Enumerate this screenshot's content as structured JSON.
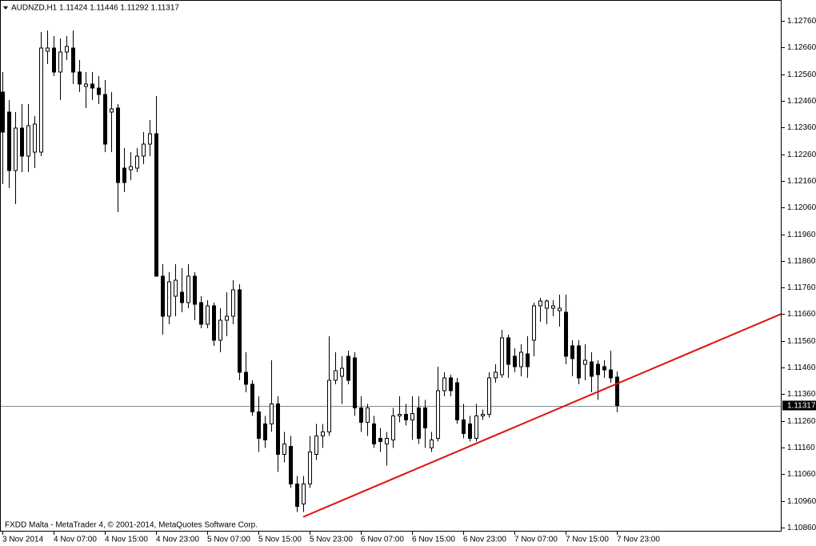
{
  "chart_data": {
    "type": "candlestick",
    "header": "AUDNZD,H1  1.11424 1.11446 1.11292 1.11317",
    "footer": "FXDD Malta - MetaTrader 4, © 2001-2014, MetaQuotes Software Corp.",
    "categories": [
      "3 Nov 2014",
      null,
      null,
      null,
      null,
      null,
      null,
      null,
      "4 Nov 07:00",
      null,
      null,
      null,
      null,
      null,
      null,
      null,
      "4 Nov 15:00",
      null,
      null,
      null,
      null,
      null,
      null,
      null,
      "4 Nov 23:00",
      null,
      null,
      null,
      null,
      null,
      null,
      null,
      "5 Nov 07:00",
      null,
      null,
      null,
      null,
      null,
      null,
      null,
      "5 Nov 15:00",
      null,
      null,
      null,
      null,
      null,
      null,
      null,
      "5 Nov 23:00",
      null,
      null,
      null,
      null,
      null,
      null,
      null,
      "6 Nov 07:00",
      null,
      null,
      null,
      null,
      null,
      null,
      null,
      "6 Nov 15:00",
      null,
      null,
      null,
      null,
      null,
      null,
      null,
      "6 Nov 23:00",
      null,
      null,
      null,
      null,
      null,
      null,
      null,
      "7 Nov 07:00",
      null,
      null,
      null,
      null,
      null,
      null,
      null,
      "7 Nov 15:00",
      null,
      null,
      null,
      null,
      null,
      null,
      null,
      "7 Nov 23:00"
    ],
    "open": [
      1.12493,
      1.12418,
      1.12199,
      1.12358,
      1.12253,
      1.12268,
      1.12268,
      1.12646,
      1.12658,
      1.12568,
      1.12643,
      1.12658,
      1.12568,
      1.12514,
      1.12523,
      1.12508,
      1.12484,
      1.12418,
      1.12433,
      1.12208,
      1.12202,
      1.12208,
      1.12253,
      1.12298,
      1.12337,
      1.11803,
      1.11653,
      1.11728,
      1.11743,
      1.11704,
      1.11803,
      1.11704,
      1.11623,
      1.11692,
      1.11563,
      1.11638,
      1.11653,
      1.11752,
      1.11443,
      1.11398,
      1.11293,
      1.11248,
      1.11248,
      1.11323,
      1.11134,
      1.11164,
      1.11023,
      1.10948,
      1.11023,
      1.11134,
      1.11203,
      1.11218,
      1.11413,
      1.11428,
      1.11503,
      1.11497,
      1.11308,
      1.11254,
      1.11248,
      1.11194,
      1.11173,
      1.11188,
      1.11278,
      1.11284,
      1.11263,
      1.11308,
      1.11308,
      1.11158,
      1.11194,
      1.11374,
      1.11422,
      1.11404,
      1.11263,
      1.11248,
      1.11194,
      1.11278,
      1.11284,
      1.11422,
      1.11434,
      1.11572,
      1.11503,
      1.11464,
      1.11512,
      1.11563,
      1.11692,
      1.11683,
      1.11683,
      1.11674,
      1.11668,
      1.11542,
      1.11542,
      1.11473,
      1.11482,
      1.11473,
      1.11464,
      1.11452,
      1.11424
    ],
    "high": [
      1.12568,
      1.12463,
      1.12418,
      1.12448,
      1.12448,
      1.12403,
      1.12718,
      1.12724,
      1.12703,
      1.12694,
      1.12703,
      1.12724,
      1.12613,
      1.12568,
      1.12568,
      1.12553,
      1.12538,
      1.12493,
      1.12448,
      1.12283,
      1.12268,
      1.12283,
      1.12343,
      1.12388,
      1.12478,
      1.11848,
      1.11818,
      1.11848,
      1.11833,
      1.11848,
      1.11818,
      1.11728,
      1.11713,
      1.11704,
      1.11683,
      1.11743,
      1.11788,
      1.11773,
      1.11518,
      1.11413,
      1.11353,
      1.11278,
      1.11488,
      1.11353,
      1.11218,
      1.11203,
      1.11053,
      1.11053,
      1.11203,
      1.11248,
      1.11248,
      1.11578,
      1.11518,
      1.11503,
      1.11524,
      1.11518,
      1.11353,
      1.11323,
      1.11278,
      1.11233,
      1.11218,
      1.11308,
      1.11353,
      1.11323,
      1.11353,
      1.11353,
      1.11338,
      1.11218,
      1.11464,
      1.11443,
      1.11434,
      1.11422,
      1.11323,
      1.11278,
      1.11323,
      1.11302,
      1.11443,
      1.11473,
      1.11602,
      1.11584,
      1.11533,
      1.11548,
      1.11578,
      1.11704,
      1.11722,
      1.11716,
      1.11713,
      1.11734,
      1.11734,
      1.11563,
      1.11563,
      1.11548,
      1.11518,
      1.11488,
      1.11488,
      1.11524,
      1.11446
    ],
    "low": [
      1.12148,
      1.12133,
      1.12073,
      1.12193,
      1.12193,
      1.12208,
      1.12253,
      1.12598,
      1.12553,
      1.12463,
      1.12613,
      1.12523,
      1.12493,
      1.12433,
      1.12463,
      1.12448,
      1.12268,
      1.12268,
      1.12043,
      1.12118,
      1.12163,
      1.12193,
      1.12223,
      1.12253,
      1.11803,
      1.11584,
      1.11623,
      1.11653,
      1.11668,
      1.11683,
      1.11638,
      1.11608,
      1.11608,
      1.11542,
      1.11518,
      1.11578,
      1.11623,
      1.11413,
      1.11368,
      1.11278,
      1.11143,
      1.11158,
      1.11218,
      1.11068,
      1.11104,
      1.11008,
      1.10918,
      1.10918,
      1.11008,
      1.11113,
      1.11158,
      1.11203,
      1.11398,
      1.11323,
      1.11398,
      1.11278,
      1.11218,
      1.11203,
      1.11158,
      1.11143,
      1.11092,
      1.11158,
      1.11254,
      1.11242,
      1.11188,
      1.11173,
      1.11158,
      1.11143,
      1.11182,
      1.11353,
      1.11353,
      1.11248,
      1.11194,
      1.11182,
      1.11182,
      1.11263,
      1.11272,
      1.11404,
      1.11422,
      1.11422,
      1.11443,
      1.11428,
      1.11422,
      1.11503,
      1.11632,
      1.11623,
      1.11653,
      1.11614,
      1.11473,
      1.11428,
      1.11398,
      1.11413,
      1.11368,
      1.11338,
      1.11422,
      1.11404,
      1.11292
    ],
    "close": [
      1.12343,
      1.12199,
      1.12358,
      1.12253,
      1.12367,
      1.12373,
      1.12658,
      1.12658,
      1.12568,
      1.12643,
      1.12664,
      1.12568,
      1.12523,
      1.12523,
      1.12508,
      1.12484,
      1.12298,
      1.1243,
      1.12154,
      1.12154,
      1.12214,
      1.12253,
      1.12298,
      1.12337,
      1.11803,
      1.11653,
      1.11782,
      1.11788,
      1.11704,
      1.11803,
      1.11698,
      1.11623,
      1.11692,
      1.11563,
      1.11638,
      1.11653,
      1.11752,
      1.11443,
      1.11398,
      1.11293,
      1.11194,
      1.11188,
      1.11323,
      1.11134,
      1.11173,
      1.11023,
      1.10939,
      1.11023,
      1.11143,
      1.11203,
      1.11218,
      1.11413,
      1.11449,
      1.11458,
      1.11413,
      1.11308,
      1.11254,
      1.11308,
      1.11173,
      1.11182,
      1.11194,
      1.11278,
      1.11284,
      1.11263,
      1.11287,
      1.11194,
      1.11233,
      1.11188,
      1.11374,
      1.11422,
      1.11374,
      1.11263,
      1.11212,
      1.11194,
      1.11278,
      1.11284,
      1.11422,
      1.11443,
      1.11572,
      1.11473,
      1.11464,
      1.11518,
      1.11464,
      1.11692,
      1.1171,
      1.1171,
      1.11692,
      1.11683,
      1.11503,
      1.11494,
      1.11422,
      1.11488,
      1.11428,
      1.11434,
      1.11452,
      1.11422,
      1.11317
    ],
    "up_color": "#ffffff",
    "down_color": "#000000",
    "ylim": [
      1.10845,
      1.12838
    ],
    "yticks": [
      {
        "value": 1.1086,
        "label": "1.10860"
      },
      {
        "value": 1.1096,
        "label": "1.10960"
      },
      {
        "value": 1.1106,
        "label": "1.11060"
      },
      {
        "value": 1.1116,
        "label": "1.11160"
      },
      {
        "value": 1.1126,
        "label": "1.11260"
      },
      {
        "value": 1.1136,
        "label": "1.11360"
      },
      {
        "value": 1.1146,
        "label": "1.11460"
      },
      {
        "value": 1.1156,
        "label": "1.11560"
      },
      {
        "value": 1.1166,
        "label": "1.11660"
      },
      {
        "value": 1.1176,
        "label": "1.11760"
      },
      {
        "value": 1.1186,
        "label": "1.11860"
      },
      {
        "value": 1.1196,
        "label": "1.11960"
      },
      {
        "value": 1.1206,
        "label": "1.12060"
      },
      {
        "value": 1.1216,
        "label": "1.12160"
      },
      {
        "value": 1.1226,
        "label": "1.12260"
      },
      {
        "value": 1.1236,
        "label": "1.12360"
      },
      {
        "value": 1.1246,
        "label": "1.12460"
      },
      {
        "value": 1.1256,
        "label": "1.12560"
      },
      {
        "value": 1.1266,
        "label": "1.12660"
      },
      {
        "value": 1.1276,
        "label": "1.12760"
      }
    ],
    "current_price": 1.11317,
    "current_price_color": "#7f8c9a",
    "trendline": {
      "start_index": 47,
      "start_price": 1.109,
      "end_index": 95,
      "end_price": 1.11389,
      "color": "#e01010"
    }
  }
}
